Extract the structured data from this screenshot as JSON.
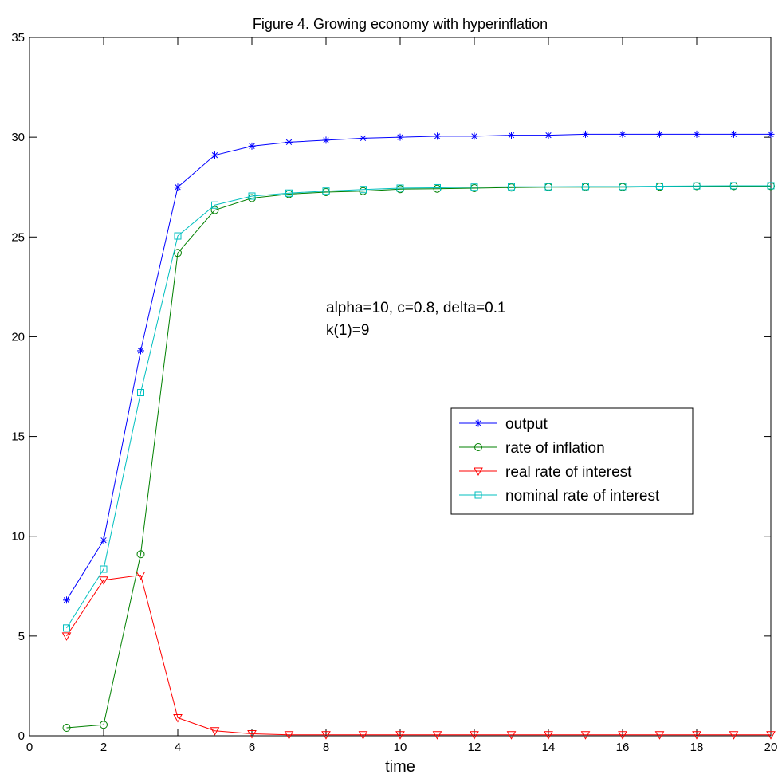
{
  "chart_data": {
    "type": "line",
    "title": "Figure 4. Growing economy with hyperinflation",
    "xlabel": "time",
    "ylabel": "",
    "xlim": [
      0,
      20
    ],
    "ylim": [
      0,
      35
    ],
    "xticks": [
      0,
      2,
      4,
      6,
      8,
      10,
      12,
      14,
      16,
      18,
      20
    ],
    "yticks": [
      0,
      5,
      10,
      15,
      20,
      25,
      30,
      35
    ],
    "grid": false,
    "legend": "center-right",
    "annotations": [
      "alpha=10, c=0.8, delta=0.1",
      "k(1)=9"
    ],
    "x": [
      1,
      2,
      3,
      4,
      5,
      6,
      7,
      8,
      9,
      10,
      11,
      12,
      13,
      14,
      15,
      16,
      17,
      18,
      19,
      20
    ],
    "series": [
      {
        "name": "output",
        "color": "#0000ff",
        "marker": "asterisk",
        "values": [
          6.8,
          9.8,
          19.3,
          27.5,
          29.1,
          29.55,
          29.75,
          29.85,
          29.95,
          30.0,
          30.05,
          30.05,
          30.1,
          30.1,
          30.15,
          30.15,
          30.15,
          30.15,
          30.15,
          30.15
        ]
      },
      {
        "name": "rate of inflation",
        "color": "#008000",
        "marker": "circle",
        "values": [
          0.4,
          0.55,
          9.1,
          24.2,
          26.35,
          26.95,
          27.15,
          27.25,
          27.3,
          27.4,
          27.42,
          27.45,
          27.48,
          27.5,
          27.5,
          27.5,
          27.52,
          27.55,
          27.55,
          27.55
        ]
      },
      {
        "name": "real rate of interest",
        "color": "#ff0000",
        "marker": "triangle-down",
        "values": [
          5.0,
          7.8,
          8.05,
          0.9,
          0.25,
          0.1,
          0.05,
          0.05,
          0.05,
          0.05,
          0.05,
          0.05,
          0.05,
          0.05,
          0.05,
          0.05,
          0.05,
          0.05,
          0.05,
          0.05
        ]
      },
      {
        "name": "nominal rate of interest",
        "color": "#00bfbf",
        "marker": "square",
        "values": [
          5.4,
          8.35,
          17.2,
          25.05,
          26.6,
          27.05,
          27.2,
          27.3,
          27.38,
          27.45,
          27.47,
          27.5,
          27.52,
          27.52,
          27.53,
          27.53,
          27.55,
          27.56,
          27.57,
          27.57
        ]
      }
    ]
  }
}
